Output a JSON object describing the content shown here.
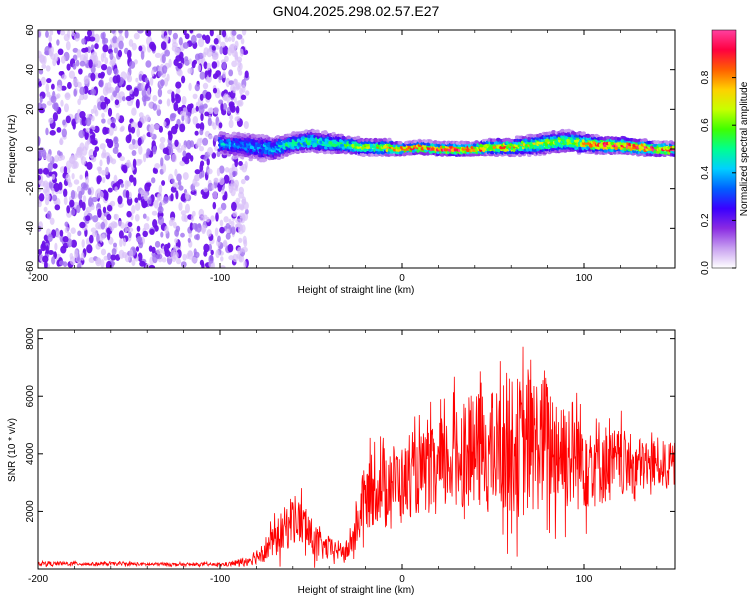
{
  "title": "GN04.2025.298.02.57.E27",
  "chart_data": [
    {
      "type": "heatmap",
      "xlabel": "Height of straight line (km)",
      "ylabel": "Frequency (Hz)",
      "xlim": [
        -200,
        150
      ],
      "ylim": [
        -60,
        60
      ],
      "xticks": [
        "-200",
        "-100",
        "0",
        "100"
      ],
      "xtick_values": [
        -200,
        -100,
        0,
        100
      ],
      "yticks": [
        "-60",
        "-40",
        "-20",
        "0",
        "20",
        "40",
        "60"
      ],
      "ytick_values": [
        -60,
        -40,
        -20,
        0,
        20,
        40,
        60
      ],
      "colorbar": {
        "label": "Normalized spectral amplitude",
        "range": [
          0,
          1
        ],
        "ticks": [
          "0.0",
          "0.2",
          "0.4",
          "0.6",
          "0.8"
        ],
        "tick_values": [
          0.0,
          0.2,
          0.4,
          0.6,
          0.8
        ],
        "stops": [
          "#ffffff",
          "#c8a0f0",
          "#8a2be2",
          "#3a00ff",
          "#0060ff",
          "#00d0ff",
          "#00ff90",
          "#40ff00",
          "#c8ff00",
          "#ffd000",
          "#ff6000",
          "#ff0040",
          "#ff40a0"
        ]
      },
      "noise_region": {
        "x_range": [
          -200,
          -85
        ],
        "y_range": [
          -60,
          60
        ]
      },
      "signal_band": {
        "x": [
          -100,
          -90,
          -80,
          -70,
          -60,
          -50,
          -40,
          -30,
          -20,
          -10,
          0,
          10,
          20,
          30,
          40,
          50,
          60,
          70,
          80,
          90,
          100,
          110,
          120,
          130,
          140,
          150
        ],
        "center_hz": [
          3,
          2,
          1,
          0,
          3,
          4,
          3,
          2,
          1,
          1,
          0,
          1,
          0,
          0,
          0,
          1,
          1,
          2,
          3,
          4,
          3,
          2,
          2,
          1,
          0,
          0
        ],
        "halfwidth_hz": [
          5,
          6,
          7,
          6,
          5,
          5,
          5,
          4,
          3,
          3,
          2,
          2,
          2,
          2,
          2,
          3,
          3,
          4,
          5,
          5,
          4,
          3,
          3,
          3,
          2,
          2
        ],
        "peak_amplitude": [
          0.4,
          0.35,
          0.35,
          0.4,
          0.45,
          0.5,
          0.45,
          0.5,
          0.6,
          0.7,
          0.8,
          0.8,
          0.85,
          0.85,
          0.85,
          0.75,
          0.7,
          0.65,
          0.6,
          0.55,
          0.7,
          0.85,
          0.85,
          0.85,
          0.85,
          0.85
        ]
      }
    },
    {
      "type": "line",
      "xlabel": "Height of straight line (km)",
      "ylabel": "SNR (10 * v/v)",
      "xlim": [
        -200,
        150
      ],
      "ylim": [
        0,
        8300
      ],
      "xticks": [
        "-200",
        "-100",
        "0",
        "100"
      ],
      "xtick_values": [
        -200,
        -100,
        0,
        100
      ],
      "yticks": [
        "2000",
        "4000",
        "6000",
        "8000"
      ],
      "ytick_values": [
        2000,
        4000,
        6000,
        8000
      ],
      "color": "#ff0000",
      "series": [
        {
          "name": "SNR",
          "x": [
            -200,
            -190,
            -180,
            -170,
            -160,
            -150,
            -140,
            -130,
            -120,
            -110,
            -100,
            -95,
            -90,
            -85,
            -80,
            -75,
            -70,
            -65,
            -60,
            -55,
            -50,
            -45,
            -40,
            -35,
            -30,
            -25,
            -22,
            -20,
            -18,
            -15,
            -10,
            -5,
            0,
            5,
            10,
            15,
            20,
            25,
            30,
            35,
            40,
            45,
            50,
            55,
            60,
            65,
            70,
            75,
            80,
            85,
            90,
            95,
            100,
            105,
            110,
            115,
            120,
            125,
            130,
            135,
            140,
            145,
            150
          ],
          "y": [
            200,
            180,
            190,
            170,
            180,
            175,
            160,
            170,
            150,
            160,
            150,
            170,
            220,
            300,
            450,
            700,
            1000,
            1300,
            1800,
            1600,
            1100,
            800,
            700,
            650,
            600,
            1400,
            2200,
            2400,
            2600,
            2800,
            3000,
            3100,
            3000,
            3100,
            3300,
            3400,
            3300,
            3700,
            4000,
            4000,
            4100,
            4100,
            4000,
            4200,
            4300,
            4200,
            4300,
            4400,
            4300,
            4200,
            4100,
            4000,
            3900,
            3800,
            3700,
            3600,
            3700,
            3600,
            3600,
            3600,
            3700,
            3600,
            3600
          ],
          "spread": [
            80,
            70,
            70,
            60,
            60,
            60,
            60,
            60,
            50,
            50,
            60,
            80,
            120,
            180,
            280,
            450,
            600,
            800,
            900,
            850,
            700,
            500,
            400,
            350,
            300,
            800,
            1100,
            1200,
            1200,
            1300,
            1300,
            1300,
            1300,
            1300,
            1400,
            1500,
            1600,
            1700,
            1800,
            1900,
            2000,
            2100,
            2200,
            2300,
            2400,
            2500,
            2500,
            2400,
            2300,
            2200,
            2100,
            2000,
            1900,
            1700,
            1500,
            1300,
            1200,
            1100,
            1000,
            900,
            900,
            800,
            800
          ]
        }
      ]
    }
  ]
}
